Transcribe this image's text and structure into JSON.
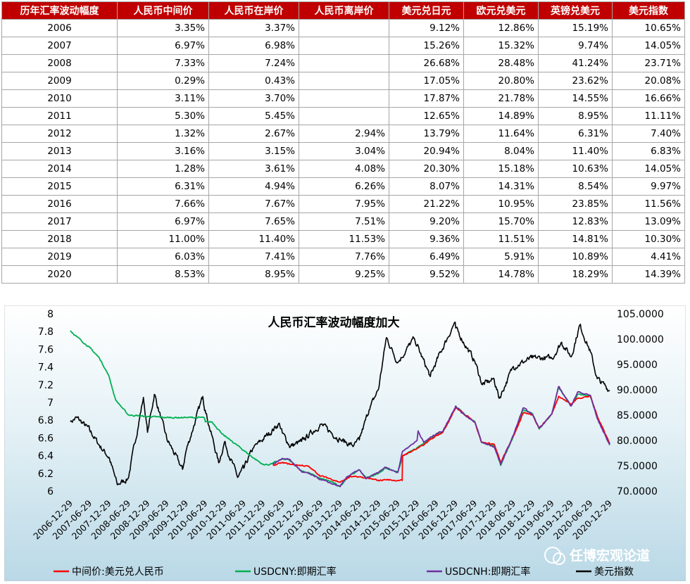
{
  "table": {
    "headers": [
      "历年汇率波动幅度",
      "人民币中间价",
      "人民币在岸价",
      "人民币离岸价",
      "美元兑日元",
      "欧元兑美元",
      "英镑兑美元",
      "美元指数"
    ],
    "rows": [
      [
        "2006",
        "3.35%",
        "3.37%",
        "",
        "9.12%",
        "12.86%",
        "15.19%",
        "10.65%"
      ],
      [
        "2007",
        "6.97%",
        "6.98%",
        "",
        "15.26%",
        "15.32%",
        "9.74%",
        "14.05%"
      ],
      [
        "2008",
        "7.33%",
        "7.24%",
        "",
        "26.68%",
        "28.48%",
        "41.24%",
        "23.71%"
      ],
      [
        "2009",
        "0.29%",
        "0.43%",
        "",
        "17.05%",
        "20.80%",
        "23.62%",
        "20.08%"
      ],
      [
        "2010",
        "3.11%",
        "3.70%",
        "",
        "17.87%",
        "21.78%",
        "14.55%",
        "16.66%"
      ],
      [
        "2011",
        "5.30%",
        "5.45%",
        "",
        "12.65%",
        "14.89%",
        "8.95%",
        "11.11%"
      ],
      [
        "2012",
        "1.32%",
        "2.67%",
        "2.94%",
        "13.79%",
        "11.64%",
        "6.31%",
        "7.40%"
      ],
      [
        "2013",
        "3.16%",
        "3.15%",
        "3.04%",
        "20.94%",
        "8.04%",
        "11.40%",
        "6.83%"
      ],
      [
        "2014",
        "1.28%",
        "3.61%",
        "4.08%",
        "20.30%",
        "15.18%",
        "10.63%",
        "14.05%"
      ],
      [
        "2015",
        "6.31%",
        "4.94%",
        "6.26%",
        "8.07%",
        "14.31%",
        "8.54%",
        "9.97%"
      ],
      [
        "2016",
        "7.66%",
        "7.67%",
        "7.95%",
        "21.22%",
        "10.95%",
        "23.85%",
        "11.56%"
      ],
      [
        "2017",
        "6.97%",
        "7.65%",
        "7.51%",
        "9.20%",
        "15.70%",
        "12.83%",
        "13.09%"
      ],
      [
        "2018",
        "11.00%",
        "11.40%",
        "11.53%",
        "9.36%",
        "11.51%",
        "14.81%",
        "10.30%"
      ],
      [
        "2019",
        "6.03%",
        "7.41%",
        "7.76%",
        "6.49%",
        "5.91%",
        "10.89%",
        "4.41%"
      ],
      [
        "2020",
        "8.53%",
        "8.95%",
        "9.25%",
        "9.52%",
        "14.78%",
        "18.29%",
        "14.39%"
      ]
    ]
  },
  "chart_data": {
    "type": "line",
    "title": "人民币汇率波动幅度加大",
    "x_tick_labels": [
      "2006-12-29",
      "2007-06-29",
      "2007-12-29",
      "2008-06-29",
      "2008-12-29",
      "2009-06-29",
      "2009-12-29",
      "2010-06-29",
      "2010-12-29",
      "2011-06-29",
      "2011-12-29",
      "2012-06-29",
      "2012-12-29",
      "2013-06-29",
      "2013-12-29",
      "2014-06-29",
      "2014-12-29",
      "2015-06-29",
      "2015-12-29",
      "2016-06-29",
      "2016-12-29",
      "2017-06-29",
      "2017-12-29",
      "2018-06-29",
      "2018-12-29",
      "2019-06-29",
      "2019-12-29",
      "2020-06-29",
      "2020-12-29"
    ],
    "y_left": {
      "min": 6,
      "max": 8,
      "step": 0.2,
      "tick_labels": [
        "6",
        "6.2",
        "6.4",
        "6.6",
        "6.8",
        "7",
        "7.2",
        "7.4",
        "7.6",
        "7.8",
        "8"
      ]
    },
    "y_right": {
      "min": 70,
      "max": 105,
      "step": 5,
      "tick_labels": [
        "70.0000",
        "75.0000",
        "80.0000",
        "85.0000",
        "90.0000",
        "95.0000",
        "100.0000",
        "105.0000"
      ]
    },
    "series": [
      {
        "name": "中间价:美元兑人民币",
        "axis": "left",
        "color": "#ff0000",
        "points": [
          [
            "2012-04-01",
            6.29
          ],
          [
            "2012-06-29",
            6.32
          ],
          [
            "2012-10-01",
            6.3
          ],
          [
            "2012-12-29",
            6.29
          ],
          [
            "2013-03-01",
            6.28
          ],
          [
            "2013-06-29",
            6.17
          ],
          [
            "2013-10-01",
            6.14
          ],
          [
            "2013-12-29",
            6.1
          ],
          [
            "2014-02-01",
            6.12
          ],
          [
            "2014-04-01",
            6.16
          ],
          [
            "2014-06-29",
            6.16
          ],
          [
            "2014-10-01",
            6.14
          ],
          [
            "2014-12-29",
            6.12
          ],
          [
            "2015-03-01",
            6.13
          ],
          [
            "2015-06-29",
            6.12
          ],
          [
            "2015-08-10",
            6.12
          ],
          [
            "2015-08-13",
            6.4
          ],
          [
            "2015-12-29",
            6.48
          ],
          [
            "2016-03-01",
            6.52
          ],
          [
            "2016-06-29",
            6.63
          ],
          [
            "2016-09-01",
            6.67
          ],
          [
            "2016-12-29",
            6.94
          ],
          [
            "2017-03-01",
            6.89
          ],
          [
            "2017-06-29",
            6.78
          ],
          [
            "2017-09-01",
            6.55
          ],
          [
            "2017-12-29",
            6.53
          ],
          [
            "2018-03-01",
            6.32
          ],
          [
            "2018-06-29",
            6.62
          ],
          [
            "2018-10-01",
            6.88
          ],
          [
            "2018-12-29",
            6.86
          ],
          [
            "2019-03-01",
            6.71
          ],
          [
            "2019-06-29",
            6.87
          ],
          [
            "2019-09-01",
            7.07
          ],
          [
            "2019-12-29",
            6.98
          ],
          [
            "2020-03-01",
            7.05
          ],
          [
            "2020-06-29",
            7.07
          ],
          [
            "2020-09-01",
            6.85
          ],
          [
            "2020-12-29",
            6.54
          ]
        ]
      },
      {
        "name": "USDCNY:即期汇率",
        "axis": "left",
        "color": "#00b050",
        "points": [
          [
            "2006-12-29",
            7.81
          ],
          [
            "2007-03-01",
            7.74
          ],
          [
            "2007-06-29",
            7.62
          ],
          [
            "2007-10-01",
            7.5
          ],
          [
            "2007-12-29",
            7.3
          ],
          [
            "2008-03-01",
            7.03
          ],
          [
            "2008-06-29",
            6.86
          ],
          [
            "2008-12-29",
            6.84
          ],
          [
            "2009-06-29",
            6.83
          ],
          [
            "2009-12-29",
            6.83
          ],
          [
            "2010-06-19",
            6.83
          ],
          [
            "2010-07-01",
            6.78
          ],
          [
            "2010-09-01",
            6.78
          ],
          [
            "2010-12-29",
            6.62
          ],
          [
            "2011-03-01",
            6.57
          ],
          [
            "2011-06-29",
            6.46
          ],
          [
            "2011-09-01",
            6.4
          ],
          [
            "2011-12-29",
            6.3
          ],
          [
            "2012-03-01",
            6.3
          ],
          [
            "2012-06-29",
            6.36
          ],
          [
            "2012-09-01",
            6.35
          ],
          [
            "2012-12-29",
            6.23
          ],
          [
            "2013-03-01",
            6.21
          ],
          [
            "2013-06-29",
            6.14
          ],
          [
            "2013-10-01",
            6.11
          ],
          [
            "2013-12-29",
            6.05
          ],
          [
            "2014-03-01",
            6.15
          ],
          [
            "2014-06-29",
            6.24
          ],
          [
            "2014-09-01",
            6.15
          ],
          [
            "2014-12-29",
            6.2
          ],
          [
            "2015-03-01",
            6.26
          ],
          [
            "2015-06-29",
            6.21
          ],
          [
            "2015-08-13",
            6.39
          ],
          [
            "2015-12-29",
            6.49
          ],
          [
            "2016-03-01",
            6.54
          ],
          [
            "2016-06-29",
            6.64
          ],
          [
            "2016-09-01",
            6.67
          ],
          [
            "2016-12-29",
            6.95
          ],
          [
            "2017-03-01",
            6.89
          ],
          [
            "2017-06-29",
            6.78
          ],
          [
            "2017-09-01",
            6.55
          ],
          [
            "2017-12-29",
            6.51
          ],
          [
            "2018-03-01",
            6.29
          ],
          [
            "2018-06-29",
            6.62
          ],
          [
            "2018-10-01",
            6.92
          ],
          [
            "2018-12-29",
            6.87
          ],
          [
            "2019-03-01",
            6.7
          ],
          [
            "2019-06-29",
            6.87
          ],
          [
            "2019-09-01",
            7.17
          ],
          [
            "2019-12-29",
            6.96
          ],
          [
            "2020-03-01",
            7.09
          ],
          [
            "2020-06-29",
            7.07
          ],
          [
            "2020-09-01",
            6.83
          ],
          [
            "2020-12-29",
            6.53
          ]
        ]
      },
      {
        "name": "USDCNH:即期汇率",
        "axis": "left",
        "color": "#7030a0",
        "points": [
          [
            "2012-04-01",
            6.3
          ],
          [
            "2012-06-29",
            6.37
          ],
          [
            "2012-09-01",
            6.36
          ],
          [
            "2012-12-29",
            6.22
          ],
          [
            "2013-03-01",
            6.2
          ],
          [
            "2013-06-29",
            6.13
          ],
          [
            "2013-10-01",
            6.09
          ],
          [
            "2013-12-29",
            6.05
          ],
          [
            "2014-03-01",
            6.16
          ],
          [
            "2014-06-29",
            6.24
          ],
          [
            "2014-09-01",
            6.14
          ],
          [
            "2014-12-29",
            6.21
          ],
          [
            "2015-03-01",
            6.27
          ],
          [
            "2015-06-29",
            6.21
          ],
          [
            "2015-08-13",
            6.45
          ],
          [
            "2015-12-29",
            6.57
          ],
          [
            "2016-01-08",
            6.68
          ],
          [
            "2016-03-01",
            6.55
          ],
          [
            "2016-06-29",
            6.65
          ],
          [
            "2016-09-01",
            6.68
          ],
          [
            "2016-12-29",
            6.96
          ],
          [
            "2017-03-01",
            6.88
          ],
          [
            "2017-06-29",
            6.78
          ],
          [
            "2017-09-01",
            6.55
          ],
          [
            "2017-12-29",
            6.5
          ],
          [
            "2018-03-01",
            6.3
          ],
          [
            "2018-06-29",
            6.63
          ],
          [
            "2018-10-01",
            6.94
          ],
          [
            "2018-12-29",
            6.86
          ],
          [
            "2019-03-01",
            6.71
          ],
          [
            "2019-06-29",
            6.87
          ],
          [
            "2019-09-01",
            7.18
          ],
          [
            "2019-12-29",
            6.96
          ],
          [
            "2020-03-01",
            7.12
          ],
          [
            "2020-06-29",
            7.08
          ],
          [
            "2020-09-01",
            6.82
          ],
          [
            "2020-12-29",
            6.52
          ]
        ]
      },
      {
        "name": "美元指数",
        "axis": "right",
        "color": "#000000",
        "points": [
          [
            "2006-12-29",
            83.7
          ],
          [
            "2007-03-01",
            84.5
          ],
          [
            "2007-06-29",
            82.1
          ],
          [
            "2007-10-01",
            79.0
          ],
          [
            "2007-12-29",
            76.7
          ],
          [
            "2008-03-17",
            71.3
          ],
          [
            "2008-06-29",
            72.5
          ],
          [
            "2008-11-20",
            88.5
          ],
          [
            "2008-12-29",
            81.6
          ],
          [
            "2009-03-04",
            89.1
          ],
          [
            "2009-06-29",
            80.4
          ],
          [
            "2009-11-26",
            74.3
          ],
          [
            "2009-12-29",
            77.9
          ],
          [
            "2010-06-07",
            88.7
          ],
          [
            "2010-06-29",
            86.0
          ],
          [
            "2010-11-04",
            75.6
          ],
          [
            "2010-12-29",
            79.7
          ],
          [
            "2011-05-03",
            72.7
          ],
          [
            "2011-06-29",
            74.5
          ],
          [
            "2011-09-29",
            78.5
          ],
          [
            "2011-12-29",
            80.2
          ],
          [
            "2012-06-01",
            83.4
          ],
          [
            "2012-06-29",
            81.5
          ],
          [
            "2012-09-14",
            78.8
          ],
          [
            "2012-12-29",
            79.8
          ],
          [
            "2013-06-29",
            83.2
          ],
          [
            "2013-12-29",
            80.2
          ],
          [
            "2014-05-06",
            78.9
          ],
          [
            "2014-06-29",
            80.1
          ],
          [
            "2014-09-30",
            86.0
          ],
          [
            "2014-12-29",
            90.2
          ],
          [
            "2015-03-13",
            100.3
          ],
          [
            "2015-06-29",
            95.4
          ],
          [
            "2015-12-03",
            100.2
          ],
          [
            "2015-12-29",
            98.7
          ],
          [
            "2016-05-03",
            92.6
          ],
          [
            "2016-06-29",
            95.6
          ],
          [
            "2016-12-20",
            103.3
          ],
          [
            "2016-12-29",
            102.2
          ],
          [
            "2017-06-29",
            95.6
          ],
          [
            "2017-09-08",
            91.0
          ],
          [
            "2017-12-29",
            92.1
          ],
          [
            "2018-02-15",
            88.3
          ],
          [
            "2018-06-29",
            94.6
          ],
          [
            "2018-12-29",
            96.3
          ],
          [
            "2019-06-29",
            96.2
          ],
          [
            "2019-09-30",
            99.4
          ],
          [
            "2019-12-29",
            96.5
          ],
          [
            "2020-03-20",
            102.8
          ],
          [
            "2020-06-29",
            97.5
          ],
          [
            "2020-09-01",
            92.2
          ],
          [
            "2020-12-29",
            89.9
          ]
        ]
      }
    ],
    "legend_position": "bottom",
    "watermark": "任博宏观论道",
    "background": "gradient"
  }
}
